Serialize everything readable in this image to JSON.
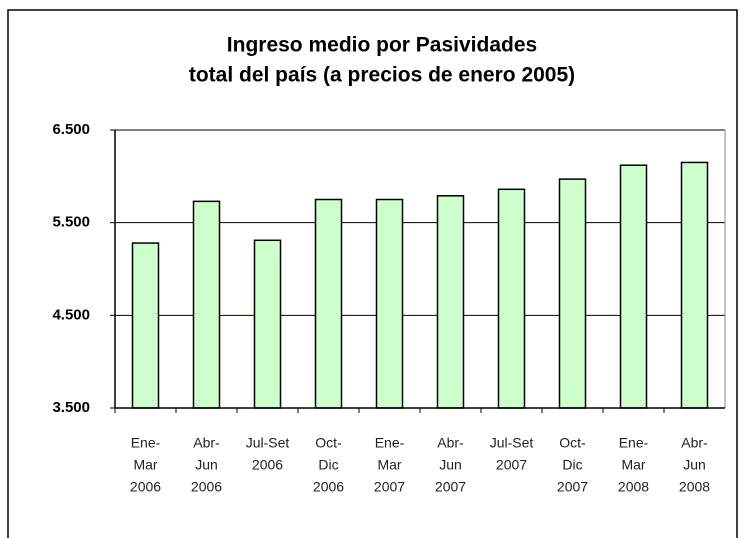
{
  "chart_data": {
    "type": "bar",
    "title": [
      "Ingreso medio por Pasividades",
      "total del país (a precios de enero 2005)"
    ],
    "categories": [
      [
        "Ene-",
        "Mar",
        "2006"
      ],
      [
        "Abr-",
        "Jun",
        "2006"
      ],
      [
        "Jul-Set",
        "2006"
      ],
      [
        "Oct-",
        "Dic",
        "2006"
      ],
      [
        "Ene-",
        "Mar",
        "2007"
      ],
      [
        "Abr-",
        "Jun",
        "2007"
      ],
      [
        "Jul-Set",
        "2007"
      ],
      [
        "Oct-",
        "Dic",
        "2007"
      ],
      [
        "Ene-",
        "Mar",
        "2008"
      ],
      [
        "Abr-",
        "Jun",
        "2008"
      ]
    ],
    "values": [
      5280,
      5730,
      5310,
      5750,
      5750,
      5790,
      5860,
      5970,
      6120,
      6150
    ],
    "color": "#ccffcc",
    "ylim": [
      3500,
      6500
    ],
    "yticks": [
      {
        "value": 3500,
        "label": "3.500"
      },
      {
        "value": 4500,
        "label": "4.500"
      },
      {
        "value": 5500,
        "label": "5.500"
      },
      {
        "value": 6500,
        "label": "6.500"
      }
    ],
    "grid": true
  }
}
